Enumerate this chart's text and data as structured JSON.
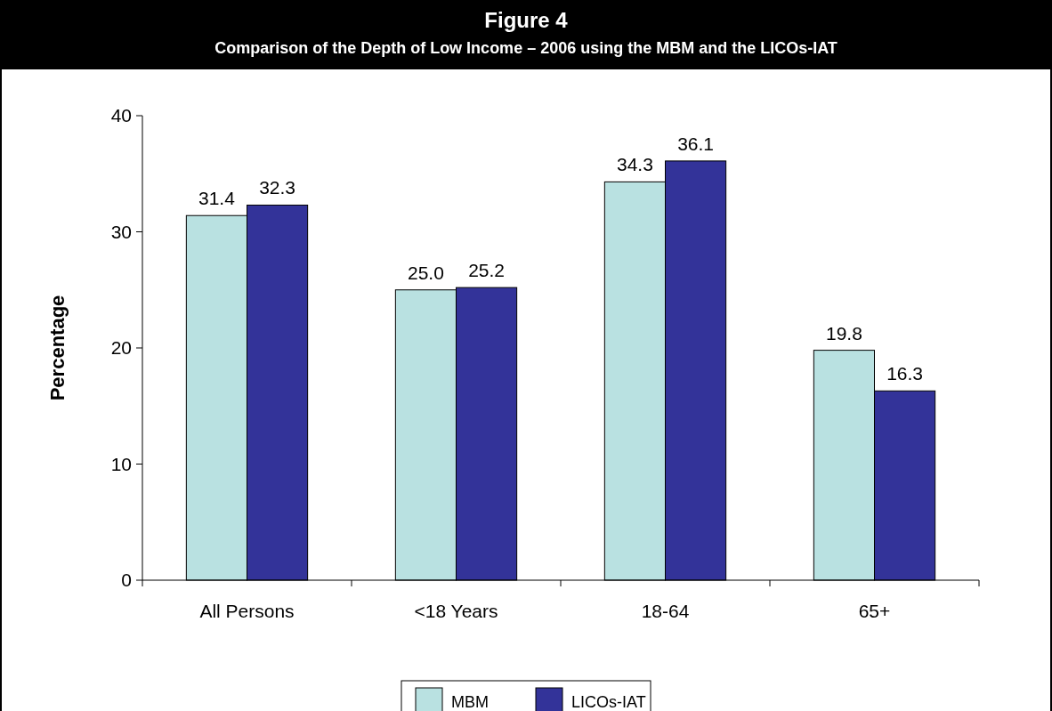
{
  "chart_data": {
    "type": "bar",
    "title": "Figure 4",
    "subtitle": "Comparison of the Depth of Low Income – 2006 using the MBM and the LICOs-IAT",
    "ylabel": "Percentage",
    "categories": [
      "All Persons",
      "<18 Years",
      "18-64",
      "65+"
    ],
    "series": [
      {
        "name": "MBM",
        "color": "#b9e1e1",
        "values": [
          31.4,
          25.0,
          34.3,
          19.8
        ]
      },
      {
        "name": "LICOs-IAT",
        "color": "#333399",
        "values": [
          32.3,
          25.2,
          36.1,
          16.3
        ]
      }
    ],
    "value_labels": [
      [
        "31.4",
        "25.0",
        "34.3",
        "19.8"
      ],
      [
        "32.3",
        "25.2",
        "36.1",
        "16.3"
      ]
    ],
    "ylim": [
      0,
      40
    ],
    "yticks": [
      0,
      10,
      20,
      30,
      40
    ],
    "grid": false,
    "legend": "bottom"
  }
}
